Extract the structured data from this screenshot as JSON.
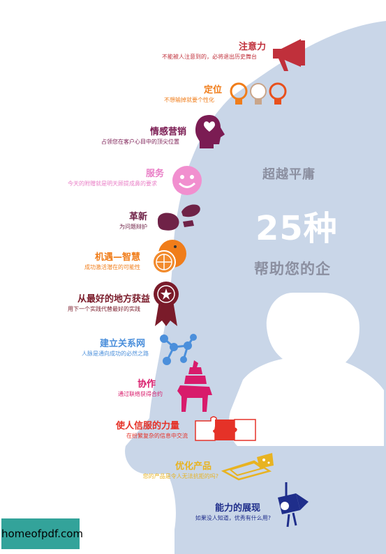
{
  "headline": {
    "line1": "超越平庸",
    "line2": "25种",
    "line3": "帮助您的企"
  },
  "watermark": "homeofpdf.com",
  "colors": {
    "head": "#c6d3e6",
    "red": "#c0303b",
    "orange": "#f07d1a",
    "purple": "#7b1c53",
    "pink": "#e97ec6",
    "plum": "#6f2247",
    "darkred": "#7a1b2a",
    "blue": "#4b8fdb",
    "magenta": "#d81b6b",
    "red2": "#e53228",
    "gold": "#e8b321",
    "navy": "#1f2e8b"
  },
  "items": [
    {
      "title": "注意力",
      "subtitle": "不能被人注意到的，必将退出历史舞台",
      "color": "#c0303b",
      "icon": "megaphone-icon"
    },
    {
      "title": "定位",
      "subtitle": "不想输掉就要个性化",
      "color": "#f07d1a",
      "icon": "lightbulbs-icon"
    },
    {
      "title": "情感营销",
      "subtitle": "占领您在客户心目中的顶尖位置",
      "color": "#7b1c53",
      "icon": "head-heart-icon"
    },
    {
      "title": "服务",
      "subtitle": "今天的附赠就是明天顾提成鼻的要求",
      "color": "#e97ec6",
      "icon": "smiley-icon"
    },
    {
      "title": "革新",
      "subtitle": "为问题辩护",
      "color": "#6f2247",
      "icon": "footprints-icon"
    },
    {
      "title": "机遇—智慧",
      "subtitle": "成功激活潜在的可能性",
      "color": "#f07d1a",
      "icon": "orange-icon"
    },
    {
      "title": "从最好的地方获益",
      "subtitle": "用下一个实践代替最好的实践",
      "color": "#7a1b2a",
      "icon": "award-ribbon-icon"
    },
    {
      "title": "建立关系网",
      "subtitle": "人脉是通向成功的必然之路",
      "color": "#4b8fdb",
      "icon": "network-icon"
    },
    {
      "title": "协作",
      "subtitle": "通过联络获得合约",
      "color": "#d81b6b",
      "icon": "animal-stack-icon"
    },
    {
      "title": "使人信服的力量",
      "subtitle": "在纷繁复杂的信息中交流",
      "color": "#e53228",
      "icon": "puzzle-icon"
    },
    {
      "title": "优化产品",
      "subtitle": "您的产品是令人无法抗拒的吗?",
      "color": "#e8b321",
      "icon": "mousetrap-icon"
    },
    {
      "title": "能力的展现",
      "subtitle": "如果没人知道，优秀有什么用?",
      "color": "#1f2e8b",
      "icon": "spotlight-icon"
    }
  ]
}
